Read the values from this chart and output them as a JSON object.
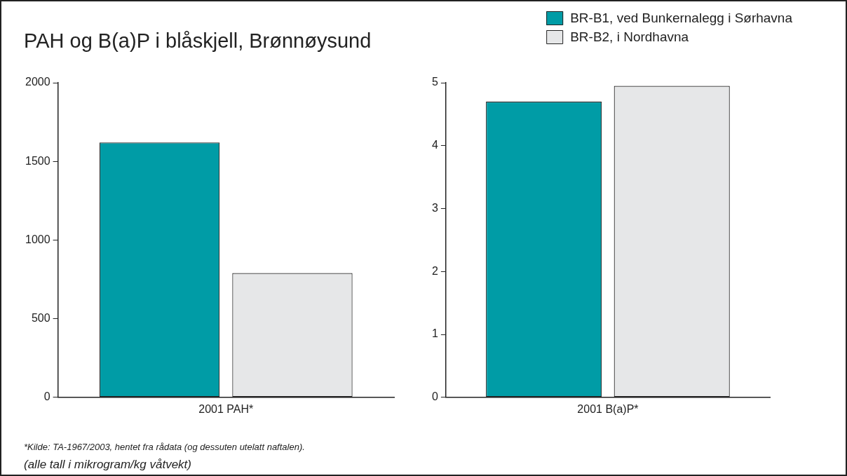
{
  "chart_data": [
    {
      "type": "bar",
      "title": "PAH og B(a)P i blåskjell, Brønnøysund",
      "categories": [
        "2001 PAH*"
      ],
      "series": [
        {
          "color": "#009ca6",
          "values": [
            1620
          ]
        },
        {
          "color": "#e6e7e8",
          "values": [
            790
          ]
        }
      ],
      "ylim": [
        0,
        2000
      ],
      "yticks": [
        0,
        500,
        1000,
        1500,
        2000
      ],
      "grid": false,
      "annotations": [
        "*Kilde: TA-1967/2003, hentet fra rådata (og dessuten utelatt naftalen).",
        "(alle tall i mikrogram/kg våtvekt)"
      ]
    },
    {
      "type": "bar",
      "categories": [
        "2001 B(a)P*"
      ],
      "series": [
        {
          "name": "BR-B1, ved Bunkernalegg i Sørhavna",
          "color": "#009ca6",
          "values": [
            4.7
          ]
        },
        {
          "name": "BR-B2, i Nordhavna",
          "color": "#e6e7e8",
          "values": [
            4.95
          ]
        }
      ],
      "ylim": [
        0,
        5
      ],
      "yticks": [
        0,
        1,
        2,
        3,
        4,
        5
      ],
      "grid": false,
      "legend": "top right"
    }
  ]
}
